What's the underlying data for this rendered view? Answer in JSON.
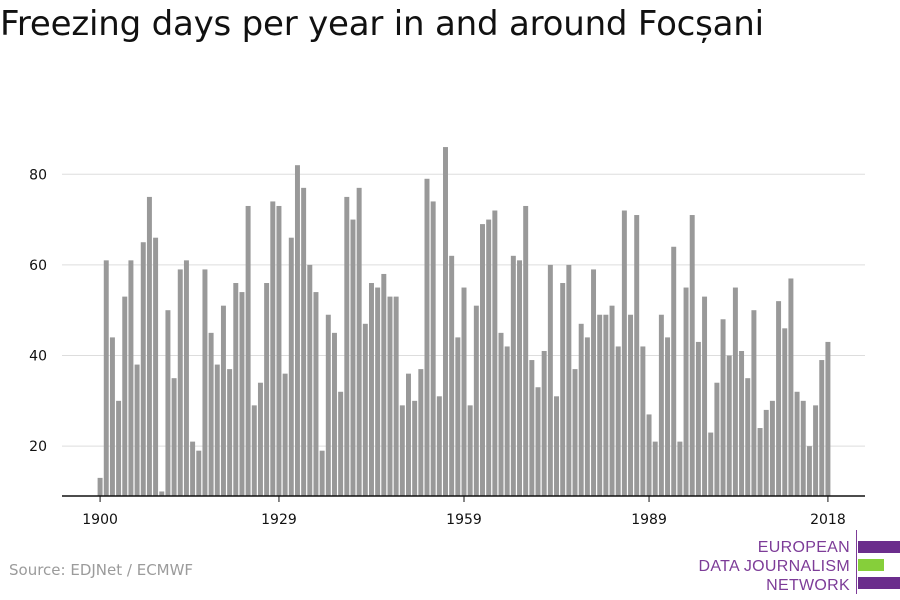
{
  "title": "Freezing days per year in and around Focșani",
  "source": "Source: EDJNet / ECMWF",
  "logo": {
    "line1": "EUROPEAN",
    "line2": "DATA JOURNALISM",
    "line3": "NETWORK",
    "colors": {
      "purple": "#6b2d8c",
      "green": "#86cf3a",
      "text": "#7d3c98"
    }
  },
  "chart_data": {
    "type": "bar",
    "title": "Freezing days per year in and around Focșani",
    "xlabel": "",
    "ylabel": "",
    "x_start": 1900,
    "x_end": 2018,
    "xticks": [
      1900,
      1929,
      1959,
      1989,
      2018
    ],
    "yticks": [
      20,
      40,
      60,
      80
    ],
    "ylim": [
      9,
      88
    ],
    "grid": true,
    "bar_color": "#999999",
    "values": [
      13,
      61,
      44,
      30,
      53,
      61,
      38,
      65,
      75,
      66,
      10,
      50,
      35,
      59,
      61,
      21,
      19,
      59,
      45,
      38,
      51,
      37,
      56,
      54,
      73,
      29,
      34,
      56,
      74,
      73,
      36,
      66,
      82,
      77,
      60,
      54,
      19,
      49,
      45,
      32,
      75,
      70,
      77,
      47,
      56,
      55,
      58,
      53,
      53,
      29,
      36,
      30,
      37,
      79,
      74,
      31,
      86,
      62,
      44,
      55,
      29,
      51,
      69,
      70,
      72,
      45,
      42,
      62,
      61,
      73,
      39,
      33,
      41,
      60,
      31,
      56,
      60,
      37,
      47,
      44,
      59,
      49,
      49,
      51,
      42,
      72,
      49,
      71,
      42,
      27,
      21,
      49,
      44,
      64,
      21,
      55,
      71,
      43,
      53,
      23,
      34,
      48,
      40,
      55,
      41,
      35,
      50,
      24,
      28,
      30,
      52,
      46,
      57,
      32,
      30,
      20,
      29,
      39,
      43
    ]
  }
}
